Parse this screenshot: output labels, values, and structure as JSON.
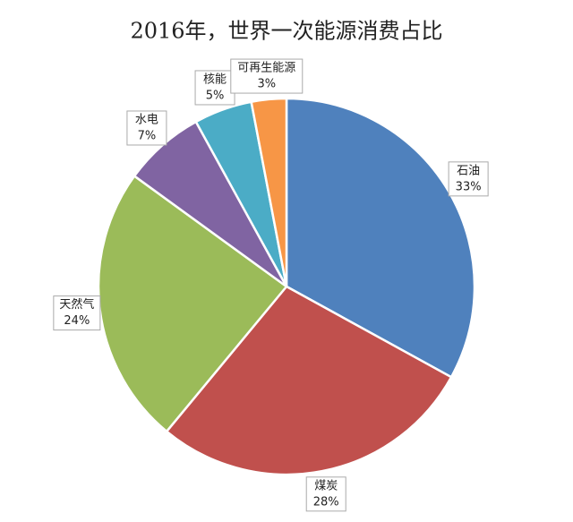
{
  "chart_data": {
    "type": "pie",
    "title": "2016年，世界一次能源消费占比",
    "categories": [
      "石油",
      "煤炭",
      "天然气",
      "水电",
      "核能",
      "可再生能源"
    ],
    "values": [
      33,
      28,
      24,
      7,
      5,
      3
    ],
    "value_labels": [
      "33%",
      "28%",
      "24%",
      "7%",
      "5%",
      "3%"
    ],
    "colors": [
      "#4f81bd",
      "#c0504d",
      "#9bbb59",
      "#8064a2",
      "#4bacc6",
      "#f79646"
    ]
  }
}
